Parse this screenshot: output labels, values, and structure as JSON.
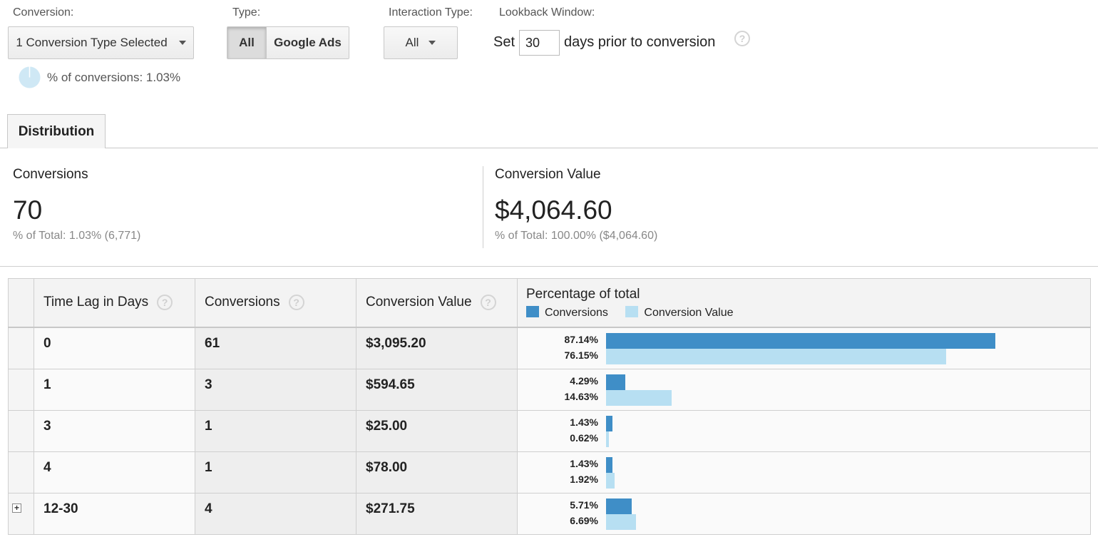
{
  "filters": {
    "conversion_label": "Conversion:",
    "conversion_value": "1 Conversion Type Selected",
    "percent_conversions": "% of conversions: 1.03%",
    "type_label": "Type:",
    "type_options": [
      "All",
      "Google Ads"
    ],
    "type_selected": "All",
    "interaction_label": "Interaction Type:",
    "interaction_value": "All",
    "lookback_label": "Lookback Window:",
    "lookback_prefix": "Set",
    "lookback_days": "30",
    "lookback_suffix": "days prior to conversion",
    "help_glyph": "?"
  },
  "tabs": {
    "distribution": "Distribution"
  },
  "summary": {
    "conversions": {
      "label": "Conversions",
      "value": "70",
      "sub": "% of Total: 1.03% (6,771)"
    },
    "conversion_value": {
      "label": "Conversion Value",
      "value": "$4,064.60",
      "sub": "% of Total: 100.00% ($4,064.60)"
    }
  },
  "table": {
    "headers": {
      "time_lag": "Time Lag in Days",
      "conversions": "Conversions",
      "conversion_value": "Conversion Value",
      "percentage": "Percentage of total"
    },
    "legend": {
      "conversions": "Conversions",
      "conversion_value": "Conversion Value"
    },
    "colors": {
      "conversions": "#3f8ec7",
      "conversion_value": "#b7dff2"
    },
    "expand_glyph": "+",
    "rows": [
      {
        "lag": "0",
        "conversions": "61",
        "value": "$3,095.20",
        "conv_pct": "87.14%",
        "val_pct": "76.15%",
        "conv_frac": 0.8714,
        "val_frac": 0.7615
      },
      {
        "lag": "1",
        "conversions": "3",
        "value": "$594.65",
        "conv_pct": "4.29%",
        "val_pct": "14.63%",
        "conv_frac": 0.0429,
        "val_frac": 0.1463
      },
      {
        "lag": "3",
        "conversions": "1",
        "value": "$25.00",
        "conv_pct": "1.43%",
        "val_pct": "0.62%",
        "conv_frac": 0.0143,
        "val_frac": 0.0062
      },
      {
        "lag": "4",
        "conversions": "1",
        "value": "$78.00",
        "conv_pct": "1.43%",
        "val_pct": "1.92%",
        "conv_frac": 0.0143,
        "val_frac": 0.0192
      },
      {
        "lag": "12-30",
        "conversions": "4",
        "value": "$271.75",
        "conv_pct": "5.71%",
        "val_pct": "6.69%",
        "conv_frac": 0.0571,
        "val_frac": 0.0669,
        "expandable": true
      }
    ]
  }
}
